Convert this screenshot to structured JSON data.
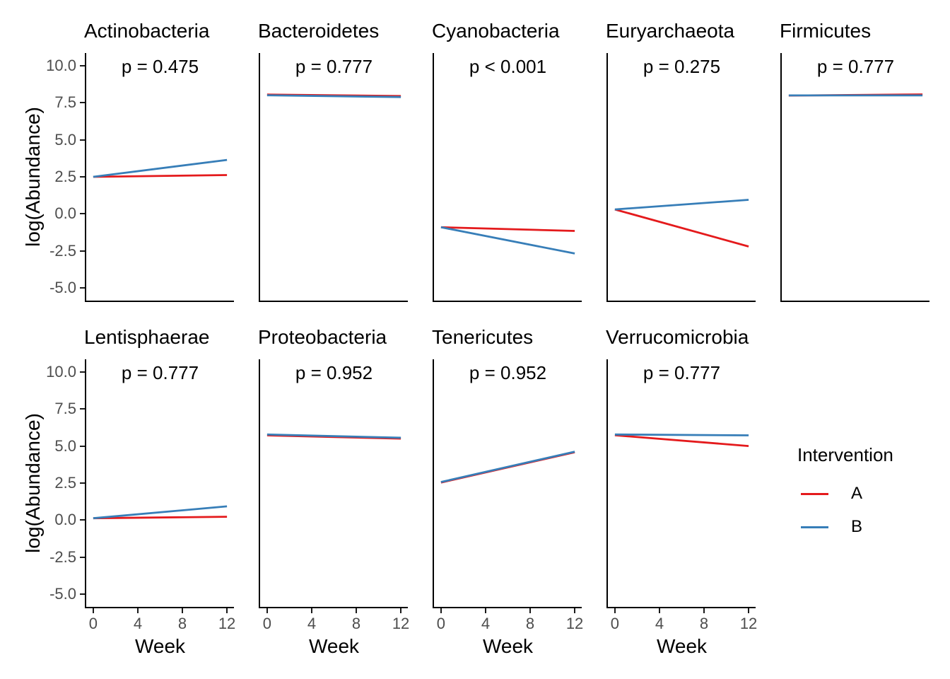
{
  "chart_data": {
    "type": "line",
    "title": "",
    "xlabel": "Week",
    "ylabel": "log(Abundance)",
    "x_ticks": [
      0,
      4,
      8,
      12
    ],
    "y_ticks": [
      10.0,
      7.5,
      5.0,
      2.5,
      0.0,
      -2.5,
      -5.0
    ],
    "y_tick_labels": [
      "10.0",
      "7.5",
      "5.0",
      "2.5",
      "0.0",
      "-2.5",
      "-5.0"
    ],
    "xlim": [
      -0.63,
      12.63
    ],
    "ylim": [
      -5.85,
      10.85
    ],
    "grid": false,
    "legend": {
      "title": "Intervention",
      "position": "right-middle",
      "entries": [
        {
          "label": "A",
          "color": "#E41A1C"
        },
        {
          "label": "B",
          "color": "#377EB8"
        }
      ]
    },
    "colors": {
      "axis_text": "#4d4d4d",
      "axis_line": "#000000",
      "text": "#000000"
    },
    "facets": [
      {
        "title": "Actinobacteria",
        "p_label": "p = 0.475",
        "series": [
          {
            "name": "A",
            "x": [
              0,
              12
            ],
            "y": [
              2.5,
              2.62
            ]
          },
          {
            "name": "B",
            "x": [
              0,
              12
            ],
            "y": [
              2.5,
              3.64
            ]
          }
        ]
      },
      {
        "title": "Bacteroidetes",
        "p_label": "p = 0.777",
        "series": [
          {
            "name": "A",
            "x": [
              0,
              12
            ],
            "y": [
              8.05,
              7.95
            ]
          },
          {
            "name": "B",
            "x": [
              0,
              12
            ],
            "y": [
              8.0,
              7.88
            ]
          }
        ]
      },
      {
        "title": "Cyanobacteria",
        "p_label": "p < 0.001",
        "series": [
          {
            "name": "A",
            "x": [
              0,
              12
            ],
            "y": [
              -0.9,
              -1.15
            ]
          },
          {
            "name": "B",
            "x": [
              0,
              12
            ],
            "y": [
              -0.9,
              -2.67
            ]
          }
        ]
      },
      {
        "title": "Euryarchaeota",
        "p_label": "p = 0.275",
        "series": [
          {
            "name": "A",
            "x": [
              0,
              12
            ],
            "y": [
              0.3,
              -2.2
            ]
          },
          {
            "name": "B",
            "x": [
              0,
              12
            ],
            "y": [
              0.3,
              0.95
            ]
          }
        ]
      },
      {
        "title": "Firmicutes",
        "p_label": "p = 0.777",
        "series": [
          {
            "name": "A",
            "x": [
              0,
              12
            ],
            "y": [
              7.98,
              8.06
            ]
          },
          {
            "name": "B",
            "x": [
              0,
              12
            ],
            "y": [
              7.99,
              7.99
            ]
          }
        ]
      },
      {
        "title": "Lentisphaerae",
        "p_label": "p = 0.777",
        "series": [
          {
            "name": "A",
            "x": [
              0,
              12
            ],
            "y": [
              0.13,
              0.23
            ]
          },
          {
            "name": "B",
            "x": [
              0,
              12
            ],
            "y": [
              0.13,
              0.93
            ]
          }
        ]
      },
      {
        "title": "Proteobacteria",
        "p_label": "p = 0.952",
        "series": [
          {
            "name": "A",
            "x": [
              0,
              12
            ],
            "y": [
              5.72,
              5.5
            ]
          },
          {
            "name": "B",
            "x": [
              0,
              12
            ],
            "y": [
              5.78,
              5.56
            ]
          }
        ]
      },
      {
        "title": "Tenericutes",
        "p_label": "p = 0.952",
        "series": [
          {
            "name": "A",
            "x": [
              0,
              12
            ],
            "y": [
              2.54,
              4.58
            ]
          },
          {
            "name": "B",
            "x": [
              0,
              12
            ],
            "y": [
              2.57,
              4.62
            ]
          }
        ]
      },
      {
        "title": "Verrucomicrobia",
        "p_label": "p = 0.777",
        "series": [
          {
            "name": "A",
            "x": [
              0,
              12
            ],
            "y": [
              5.73,
              5.0
            ]
          },
          {
            "name": "B",
            "x": [
              0,
              12
            ],
            "y": [
              5.78,
              5.72
            ]
          }
        ]
      }
    ]
  }
}
